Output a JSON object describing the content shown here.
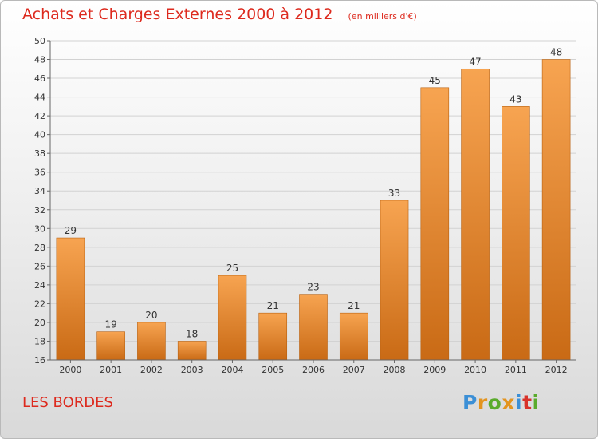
{
  "page": {
    "title": "Achats et Charges Externes 2000 à 2012",
    "subtitle": "(en milliers d'€)",
    "footer_label": "LES BORDES",
    "logo_text": "Proxiti",
    "logo_colors": [
      "#3b8fd6",
      "#e3941f",
      "#5aab2c",
      "#e3941f",
      "#3b8fd6",
      "#d8322a",
      "#5aab2c"
    ]
  },
  "chart_data": {
    "type": "bar",
    "categories": [
      "2000",
      "2001",
      "2002",
      "2003",
      "2004",
      "2005",
      "2006",
      "2007",
      "2008",
      "2009",
      "2010",
      "2011",
      "2012"
    ],
    "values": [
      29,
      19,
      20,
      18,
      25,
      21,
      23,
      21,
      33,
      45,
      47,
      43,
      48
    ],
    "value_labels": [
      "29",
      "19",
      "20",
      "18",
      "25",
      "21",
      "23",
      "21",
      "33",
      "45",
      "47",
      "43",
      "48"
    ],
    "title": "Achats et Charges Externes 2000 à 2012",
    "subtitle": "(en milliers d'€)",
    "xlabel": "",
    "ylabel": "",
    "ylim": [
      16,
      50
    ],
    "yticks": [
      "16",
      "18",
      "20",
      "22",
      "24",
      "26",
      "28",
      "30",
      "32",
      "34",
      "36",
      "38",
      "40",
      "42",
      "44",
      "46",
      "48",
      "50"
    ],
    "grid": true,
    "legend": "none",
    "bar_color_top": "#f7a451",
    "bar_color_bottom": "#c96a15"
  }
}
